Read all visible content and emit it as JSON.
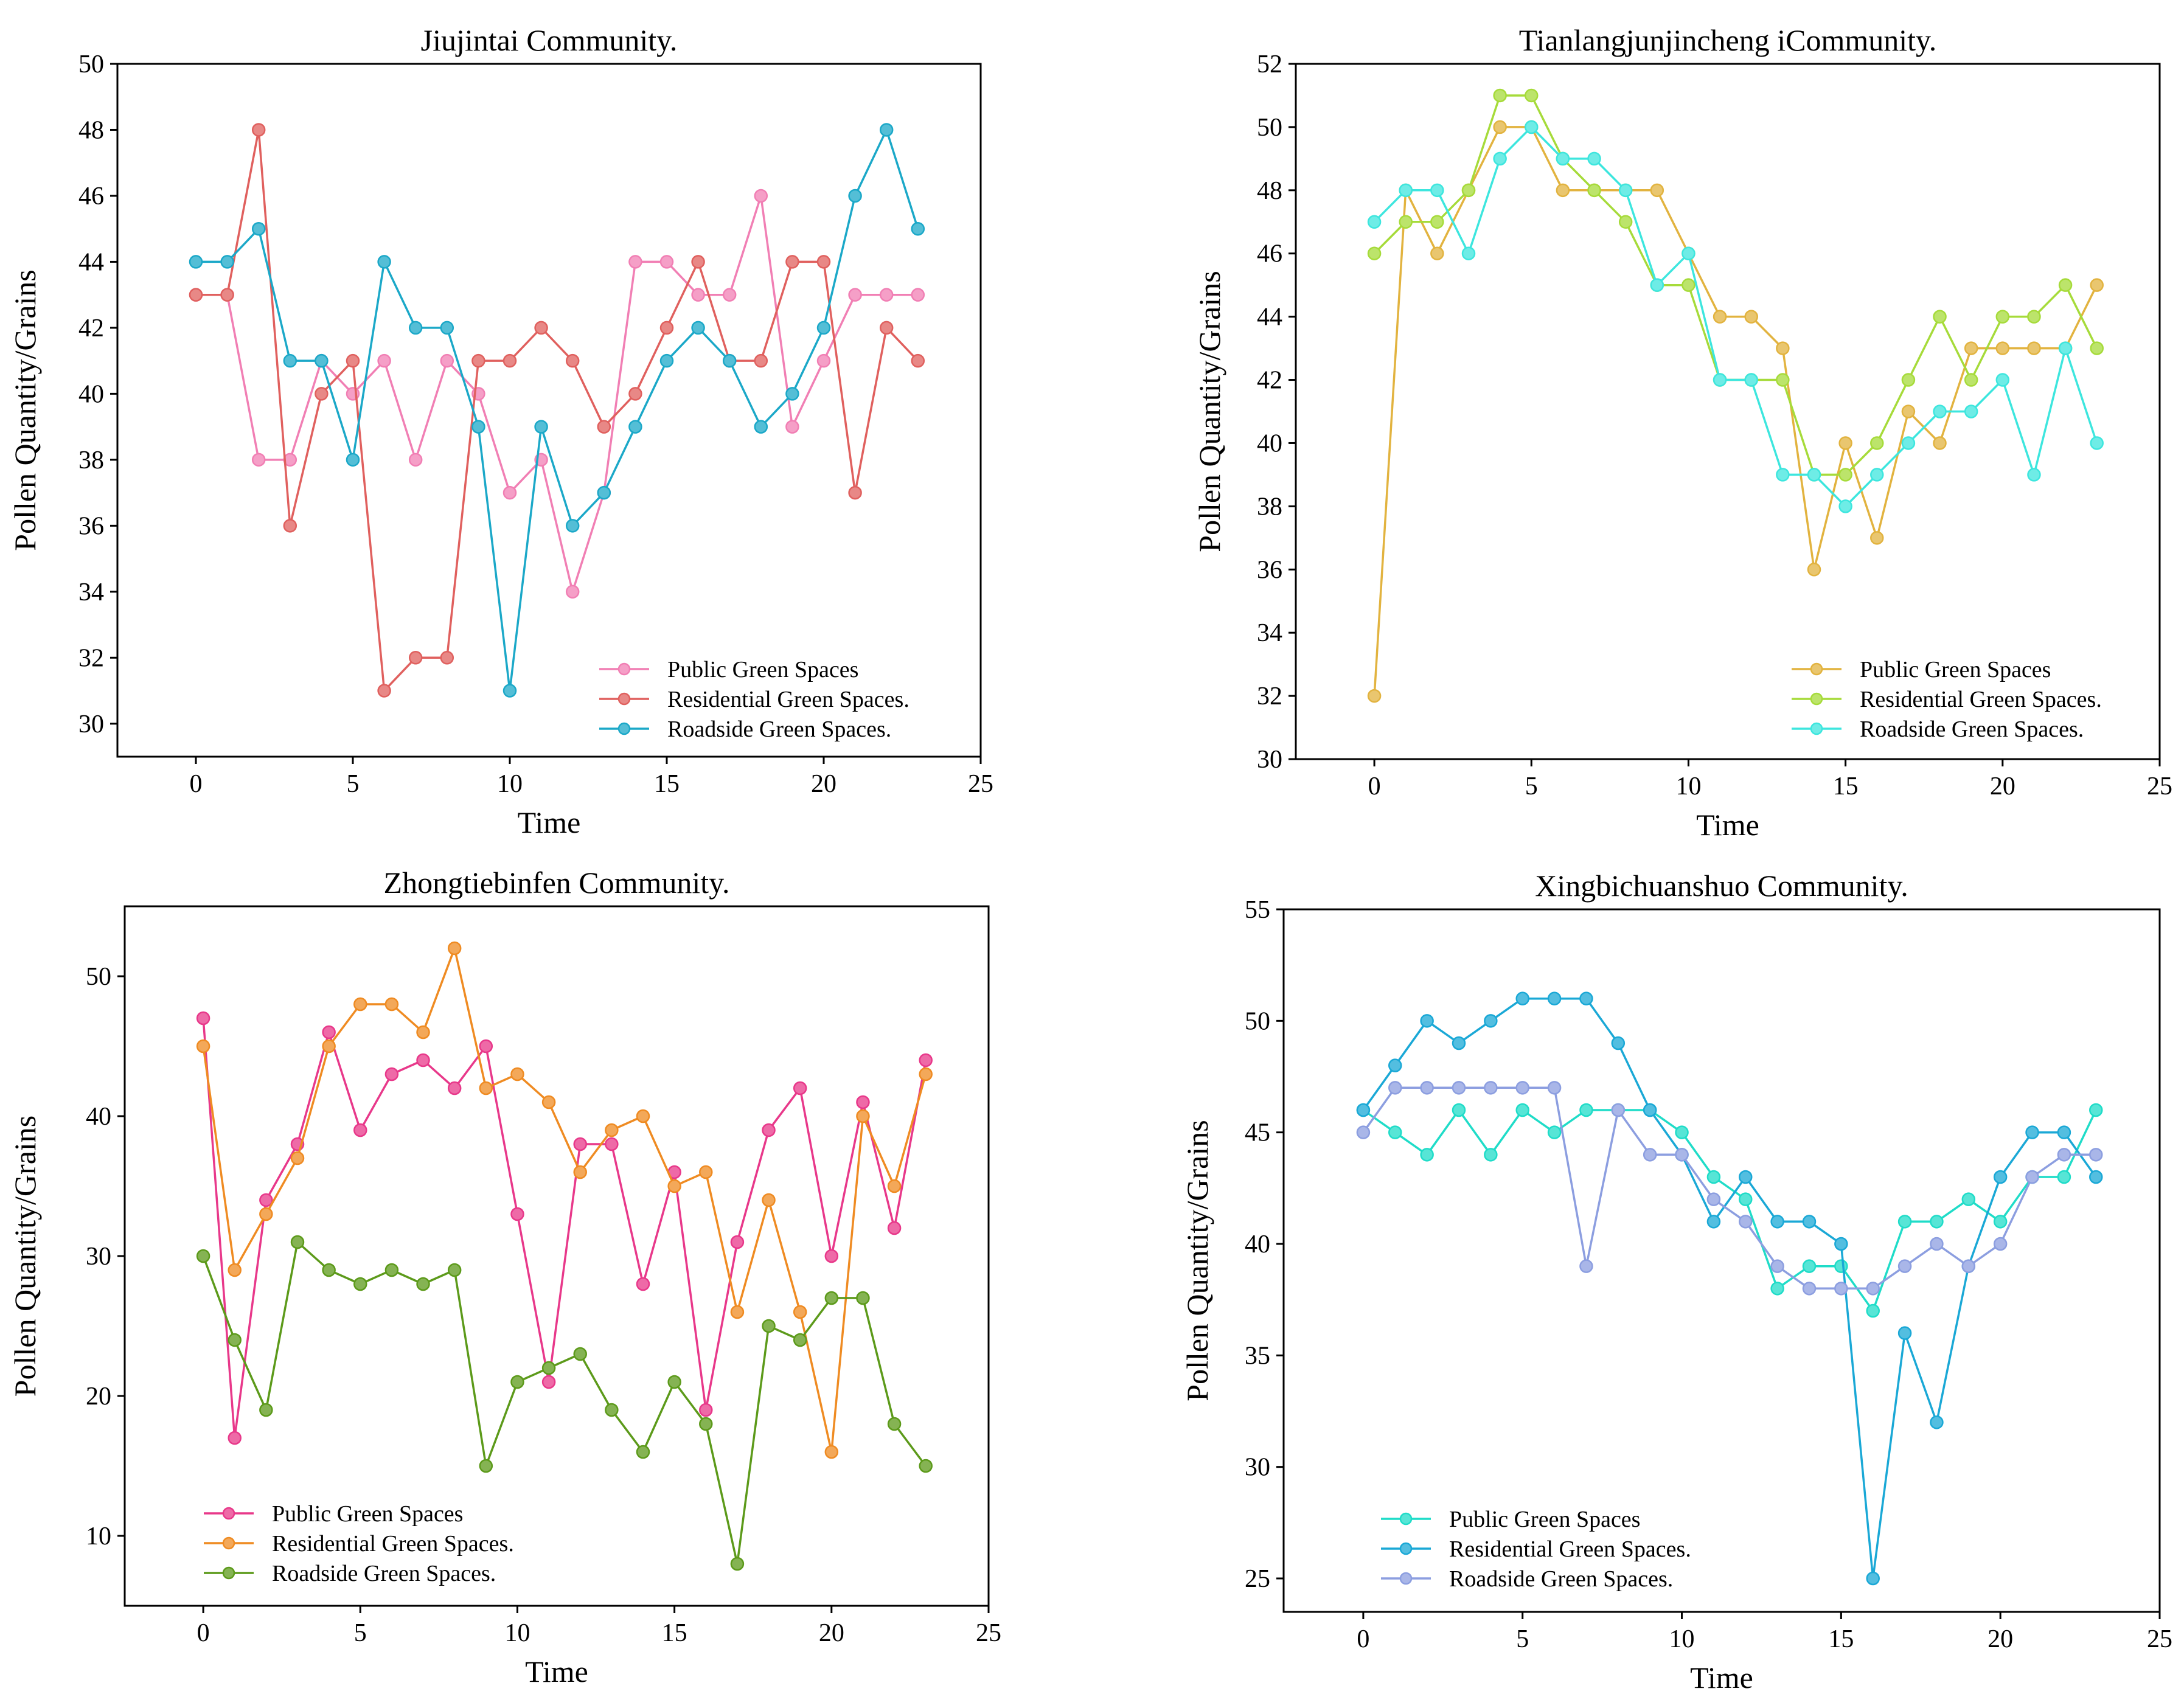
{
  "chart_data": [
    {
      "type": "line",
      "title": "Jiujintai Community.",
      "xlabel": "Time",
      "ylabel": "Pollen Quantity/Grains",
      "xlim": [
        -2.5,
        25
      ],
      "ylim": [
        29,
        50
      ],
      "xticks": [
        0,
        5,
        10,
        15,
        20,
        25
      ],
      "yticks": [
        30,
        32,
        34,
        36,
        38,
        40,
        42,
        44,
        46,
        48,
        50
      ],
      "legend_position": "bottom-right",
      "x": [
        0,
        1,
        2,
        3,
        4,
        5,
        6,
        7,
        8,
        9,
        10,
        11,
        12,
        13,
        14,
        15,
        16,
        17,
        18,
        19,
        20,
        21,
        22,
        23
      ],
      "series": [
        {
          "name": "Public Green Spaces",
          "color": "#f17fb4",
          "values": [
            43,
            43,
            38,
            38,
            41,
            40,
            41,
            38,
            41,
            40,
            37,
            38,
            34,
            37,
            44,
            44,
            43,
            43,
            46,
            39,
            41,
            43,
            43,
            43
          ]
        },
        {
          "name": "Residential Green Spaces.",
          "color": "#e0605e",
          "values": [
            43,
            43,
            48,
            36,
            40,
            41,
            31,
            32,
            32,
            41,
            41,
            42,
            41,
            39,
            40,
            42,
            44,
            41,
            41,
            44,
            44,
            37,
            42,
            41
          ]
        },
        {
          "name": "Roadside Green Spaces.",
          "color": "#1ba8c8",
          "values": [
            44,
            44,
            45,
            41,
            41,
            38,
            44,
            42,
            42,
            39,
            31,
            39,
            36,
            37,
            39,
            41,
            42,
            41,
            39,
            40,
            42,
            46,
            48,
            45
          ]
        }
      ]
    },
    {
      "type": "line",
      "title": "Tianlangjunjincheng iCommunity.",
      "xlabel": "Time",
      "ylabel": "Pollen Quantity/Grains",
      "xlim": [
        -2.5,
        25
      ],
      "ylim": [
        30,
        52
      ],
      "xticks": [
        0,
        5,
        10,
        15,
        20,
        25
      ],
      "yticks": [
        30,
        32,
        34,
        36,
        38,
        40,
        42,
        44,
        46,
        48,
        50,
        52
      ],
      "legend_position": "bottom-right",
      "x": [
        0,
        1,
        2,
        3,
        4,
        5,
        6,
        7,
        8,
        9,
        10,
        11,
        12,
        13,
        14,
        15,
        16,
        17,
        18,
        19,
        20,
        21,
        22,
        23
      ],
      "series": [
        {
          "name": "Public Green Spaces",
          "color": "#e2b33f",
          "values": [
            32,
            48,
            46,
            48,
            50,
            50,
            48,
            48,
            48,
            48,
            46,
            44,
            44,
            43,
            36,
            40,
            37,
            41,
            40,
            43,
            43,
            43,
            43,
            45
          ]
        },
        {
          "name": "Residential Green Spaces.",
          "color": "#a6db3a",
          "values": [
            46,
            47,
            47,
            48,
            51,
            51,
            49,
            48,
            47,
            45,
            45,
            42,
            42,
            42,
            39,
            39,
            40,
            42,
            44,
            42,
            44,
            44,
            45,
            43
          ]
        },
        {
          "name": "Roadside Green Spaces.",
          "color": "#3de6de",
          "values": [
            47,
            48,
            48,
            46,
            49,
            50,
            49,
            49,
            48,
            45,
            46,
            42,
            42,
            39,
            39,
            38,
            39,
            40,
            41,
            41,
            42,
            39,
            43,
            40
          ]
        }
      ]
    },
    {
      "type": "line",
      "title": "Zhongtiebinfen Community.",
      "xlabel": "Time",
      "ylabel": "Pollen Quantity/Grains",
      "xlim": [
        -2.5,
        25
      ],
      "ylim": [
        5,
        55
      ],
      "xticks": [
        0,
        5,
        10,
        15,
        20,
        25
      ],
      "yticks": [
        10,
        20,
        30,
        40,
        50
      ],
      "legend_position": "bottom-left",
      "x": [
        0,
        1,
        2,
        3,
        4,
        5,
        6,
        7,
        8,
        9,
        10,
        11,
        12,
        13,
        14,
        15,
        16,
        17,
        18,
        19,
        20,
        21,
        22,
        23
      ],
      "series": [
        {
          "name": "Public Green Spaces",
          "color": "#e8388a",
          "values": [
            47,
            17,
            34,
            38,
            46,
            39,
            43,
            44,
            42,
            45,
            33,
            21,
            38,
            38,
            28,
            36,
            19,
            31,
            39,
            42,
            30,
            41,
            32,
            44
          ]
        },
        {
          "name": "Residential Green Spaces.",
          "color": "#ef8b22",
          "values": [
            45,
            29,
            33,
            37,
            45,
            48,
            48,
            46,
            52,
            42,
            43,
            41,
            36,
            39,
            40,
            35,
            36,
            26,
            34,
            26,
            16,
            40,
            35,
            43
          ]
        },
        {
          "name": "Roadside Green Spaces.",
          "color": "#5c9a1a",
          "values": [
            30,
            24,
            19,
            31,
            29,
            28,
            29,
            28,
            29,
            15,
            21,
            22,
            23,
            19,
            16,
            21,
            18,
            8,
            25,
            24,
            27,
            27,
            18,
            15
          ]
        }
      ]
    },
    {
      "type": "line",
      "title": "Xingbichuanshuo Community.",
      "xlabel": "Time",
      "ylabel": "Pollen Quantity/Grains",
      "xlim": [
        -2.5,
        25
      ],
      "ylim": [
        23.5,
        55
      ],
      "xticks": [
        0,
        5,
        10,
        15,
        20,
        25
      ],
      "yticks": [
        25,
        30,
        35,
        40,
        45,
        50,
        55
      ],
      "legend_position": "bottom-left",
      "x": [
        0,
        1,
        2,
        3,
        4,
        5,
        6,
        7,
        8,
        9,
        10,
        11,
        12,
        13,
        14,
        15,
        16,
        17,
        18,
        19,
        20,
        21,
        22,
        23
      ],
      "series": [
        {
          "name": "Public Green Spaces",
          "color": "#1fdcc8",
          "values": [
            46,
            45,
            44,
            46,
            44,
            46,
            45,
            46,
            46,
            46,
            45,
            43,
            42,
            38,
            39,
            39,
            37,
            41,
            41,
            42,
            41,
            43,
            43,
            46
          ]
        },
        {
          "name": "Residential Green Spaces.",
          "color": "#1aa8d6",
          "values": [
            46,
            48,
            50,
            49,
            50,
            51,
            51,
            51,
            49,
            46,
            44,
            41,
            43,
            41,
            41,
            40,
            25,
            36,
            32,
            39,
            43,
            45,
            45,
            43
          ]
        },
        {
          "name": "Roadside Green Spaces.",
          "color": "#8c9ee0",
          "values": [
            45,
            47,
            47,
            47,
            47,
            47,
            47,
            39,
            46,
            44,
            44,
            42,
            41,
            39,
            38,
            38,
            38,
            39,
            40,
            39,
            40,
            43,
            44,
            44
          ]
        }
      ]
    }
  ]
}
